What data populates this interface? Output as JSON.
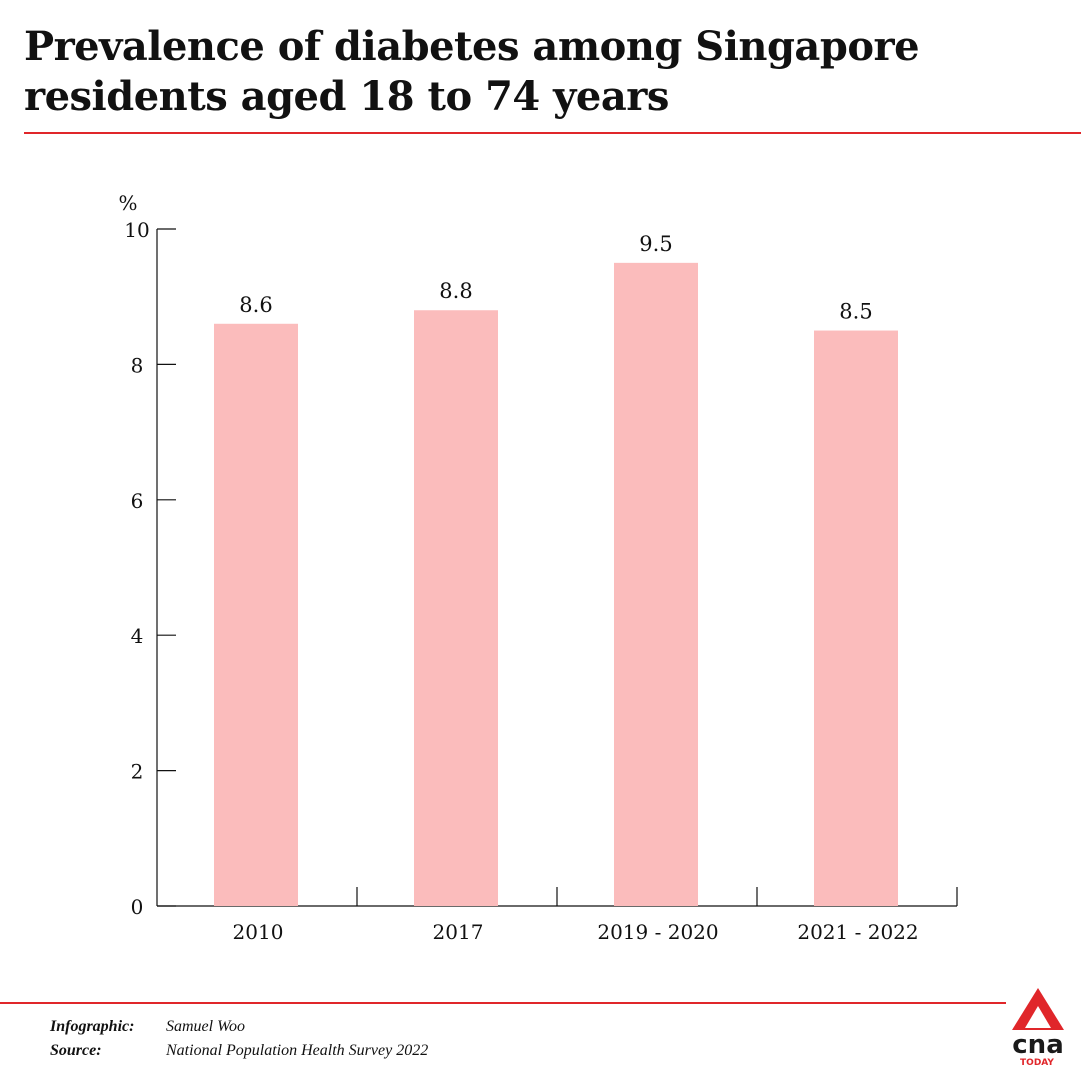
{
  "header": {
    "title": "Prevalence of diabetes among Singapore residents aged 18 to 74 years"
  },
  "chart_data": {
    "type": "bar",
    "title": "Prevalence of diabetes among Singapore residents aged 18 to 74 years",
    "ylabel": "%",
    "xlabel": "",
    "ylim": [
      0,
      10
    ],
    "yticks": [
      0,
      2,
      4,
      6,
      8,
      10
    ],
    "categories": [
      "2010",
      "2017",
      "2019 - 2020",
      "2021 - 2022"
    ],
    "values": [
      8.6,
      8.8,
      9.5,
      8.5
    ],
    "data_labels": [
      "8.6",
      "8.8",
      "9.5",
      "8.5"
    ],
    "bar_color": "#fbbcbc",
    "grid": false,
    "legend": "none"
  },
  "footer": {
    "infographic_label": "Infographic:",
    "infographic_value": "Samuel Woo",
    "source_label": "Source:",
    "source_value": "National Population Health Survey 2022"
  },
  "logo": {
    "wordmark": "cna",
    "sub": "TODAY",
    "accent_color": "#e0262a"
  },
  "colors": {
    "accent": "#e0262a",
    "bar": "#fbbcbc",
    "text": "#111111"
  }
}
